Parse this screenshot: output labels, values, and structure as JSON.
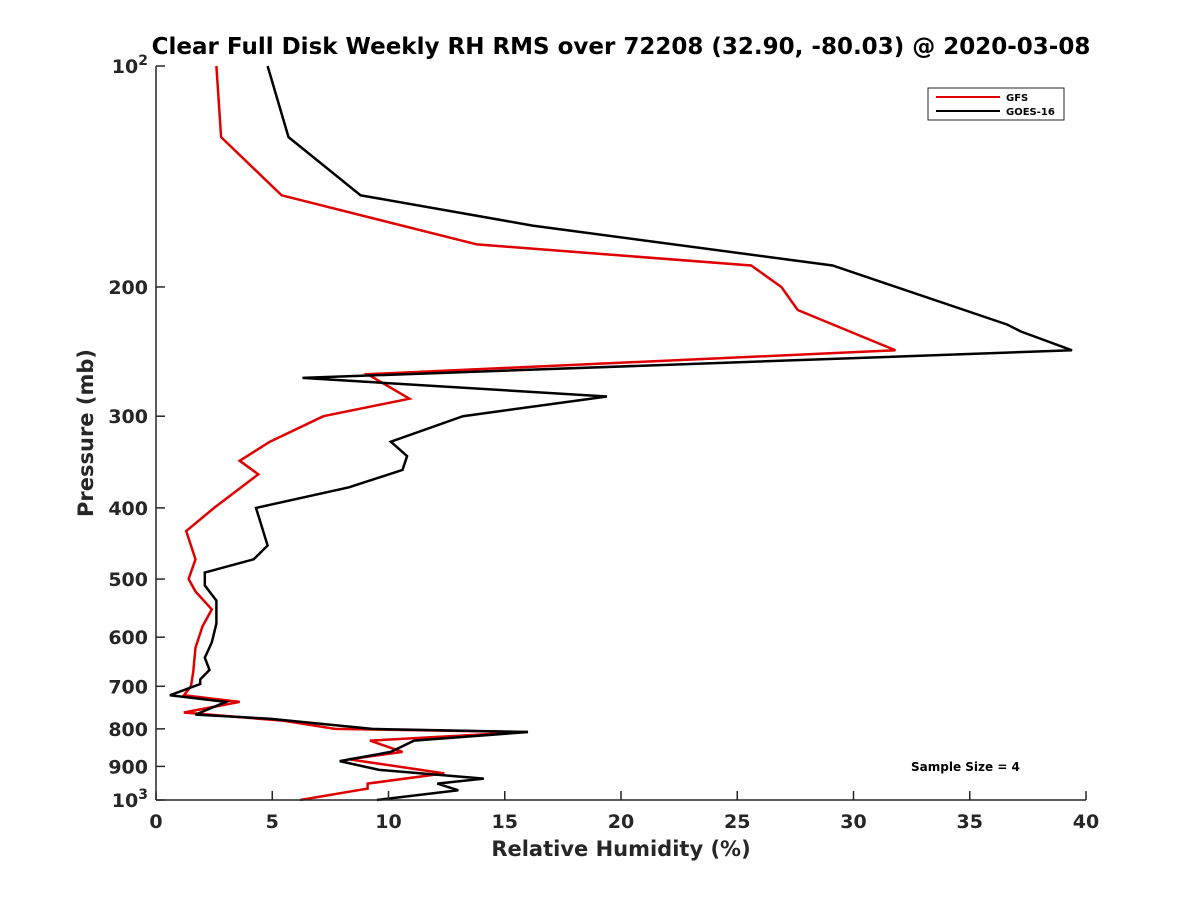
{
  "chart_data": {
    "type": "line",
    "title": "Clear Full Disk Weekly RH RMS over 72208 (32.90, -80.03) @ 2020-03-08",
    "xlabel": "Relative Humidity (%)",
    "ylabel": "Pressure (mb)",
    "xlim": [
      0,
      40
    ],
    "ylim": [
      100,
      1000
    ],
    "y_scale": "log",
    "y_reversed": true,
    "grid": false,
    "x_ticks": [
      0,
      5,
      10,
      15,
      20,
      25,
      30,
      35,
      40
    ],
    "x_tick_labels": [
      "0",
      "5",
      "10",
      "15",
      "20",
      "25",
      "30",
      "35",
      "40"
    ],
    "y_ticks": [
      100,
      200,
      300,
      400,
      500,
      600,
      700,
      800,
      900,
      1000
    ],
    "y_tick_labels": [
      {
        "base": "10",
        "exp": "2"
      },
      {
        "base": "200",
        "exp": ""
      },
      {
        "base": "300",
        "exp": ""
      },
      {
        "base": "400",
        "exp": ""
      },
      {
        "base": "500",
        "exp": ""
      },
      {
        "base": "600",
        "exp": ""
      },
      {
        "base": "700",
        "exp": ""
      },
      {
        "base": "800",
        "exp": ""
      },
      {
        "base": "900",
        "exp": ""
      },
      {
        "base": "10",
        "exp": "3"
      }
    ],
    "legend_position": "top-right",
    "annotation": "Sample Size = 4",
    "series": [
      {
        "name": "GFS",
        "color": "#e00000",
        "points": [
          [
            2.6,
            100
          ],
          [
            2.8,
            125
          ],
          [
            5.4,
            150
          ],
          [
            13.8,
            175
          ],
          [
            25.6,
            187
          ],
          [
            26.9,
            200
          ],
          [
            27.6,
            215
          ],
          [
            31.8,
            244
          ],
          [
            9.1,
            263
          ],
          [
            10.9,
            284
          ],
          [
            7.2,
            300
          ],
          [
            4.9,
            325
          ],
          [
            3.6,
            345
          ],
          [
            4.4,
            360
          ],
          [
            2.5,
            400
          ],
          [
            1.3,
            430
          ],
          [
            1.7,
            470
          ],
          [
            1.4,
            500
          ],
          [
            1.7,
            520
          ],
          [
            2.4,
            550
          ],
          [
            2.0,
            580
          ],
          [
            1.7,
            620
          ],
          [
            1.6,
            670
          ],
          [
            1.5,
            700
          ],
          [
            1.2,
            720
          ],
          [
            3.6,
            735
          ],
          [
            1.2,
            760
          ],
          [
            5.5,
            780
          ],
          [
            7.7,
            800
          ],
          [
            16.0,
            808
          ],
          [
            9.2,
            830
          ],
          [
            10.6,
            860
          ],
          [
            8.3,
            880
          ],
          [
            12.4,
            920
          ],
          [
            9.1,
            950
          ],
          [
            9.1,
            965
          ],
          [
            6.2,
            1000
          ]
        ]
      },
      {
        "name": "GOES-16",
        "color": "#000000",
        "points": [
          [
            4.8,
            100
          ],
          [
            5.7,
            125
          ],
          [
            8.8,
            150
          ],
          [
            16.2,
            165
          ],
          [
            29.1,
            187
          ],
          [
            36.6,
            225
          ],
          [
            37.2,
            230
          ],
          [
            39.4,
            244
          ],
          [
            6.3,
            266
          ],
          [
            19.4,
            282
          ],
          [
            13.2,
            300
          ],
          [
            10.1,
            325
          ],
          [
            10.8,
            340
          ],
          [
            10.6,
            355
          ],
          [
            8.3,
            375
          ],
          [
            4.3,
            400
          ],
          [
            4.8,
            450
          ],
          [
            4.2,
            470
          ],
          [
            2.1,
            490
          ],
          [
            2.1,
            510
          ],
          [
            2.6,
            535
          ],
          [
            2.6,
            575
          ],
          [
            2.4,
            610
          ],
          [
            2.1,
            640
          ],
          [
            2.3,
            665
          ],
          [
            1.9,
            685
          ],
          [
            1.9,
            695
          ],
          [
            0.6,
            720
          ],
          [
            3.0,
            735
          ],
          [
            1.7,
            765
          ],
          [
            4.9,
            775
          ],
          [
            9.3,
            800
          ],
          [
            16.0,
            808
          ],
          [
            11.1,
            830
          ],
          [
            10.1,
            860
          ],
          [
            7.9,
            885
          ],
          [
            9.6,
            910
          ],
          [
            14.1,
            935
          ],
          [
            12.1,
            950
          ],
          [
            13.0,
            970
          ],
          [
            9.5,
            1000
          ]
        ]
      }
    ]
  }
}
